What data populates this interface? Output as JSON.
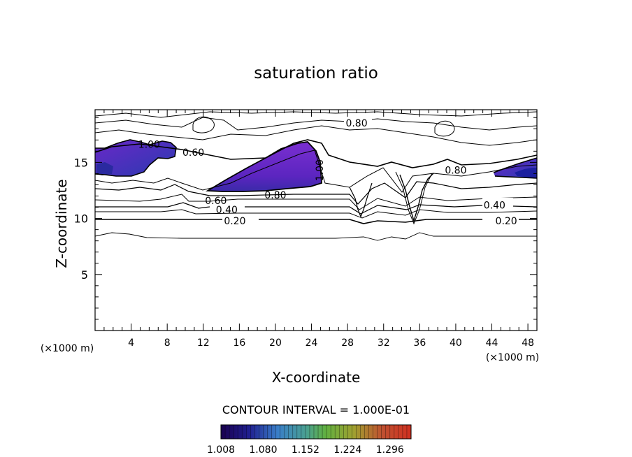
{
  "chart_data": {
    "type": "contour",
    "title": "saturation ratio",
    "xlabel": "X-coordinate",
    "ylabel": "Z-coordinate",
    "x_unit": "(×1000 m)",
    "y_unit": "(×1000 m)",
    "xlim": [
      0,
      49
    ],
    "ylim": [
      0,
      19.7
    ],
    "x_ticks": [
      "4",
      "8",
      "12",
      "16",
      "20",
      "24",
      "28",
      "32",
      "36",
      "40",
      "44",
      "48"
    ],
    "x_tick_values": [
      4,
      8,
      12,
      16,
      20,
      24,
      28,
      32,
      36,
      40,
      44,
      48
    ],
    "y_ticks": [
      "5",
      "10",
      "15"
    ],
    "y_tick_values": [
      5,
      10,
      15
    ],
    "contour_interval_text": "CONTOUR INTERVAL = 1.000E-01",
    "contour_labels": [
      {
        "text": "0.20",
        "x": 15.5,
        "z": 9.8
      },
      {
        "text": "0.20",
        "x": 45.6,
        "z": 9.8
      },
      {
        "text": "0.40",
        "x": 14.6,
        "z": 10.8
      },
      {
        "text": "0.40",
        "x": 44.3,
        "z": 11.2
      },
      {
        "text": "0.60",
        "x": 13.4,
        "z": 11.6
      },
      {
        "text": "0.80",
        "x": 20.0,
        "z": 12.1
      },
      {
        "text": "0.80",
        "x": 29.0,
        "z": 18.5
      },
      {
        "text": "0.60",
        "x": 10.9,
        "z": 15.9
      },
      {
        "text": "1.00",
        "x": 24.9,
        "z": 14.3
      },
      {
        "text": "0.80",
        "x": 40.0,
        "z": 14.3
      },
      {
        "text": "1.00",
        "x": 6.0,
        "z": 16.6
      }
    ],
    "colorbar": {
      "min": 1.008,
      "max": 1.332,
      "tick_labels": [
        "1.008",
        "1.080",
        "1.152",
        "1.224",
        "1.296"
      ],
      "tick_values": [
        1.008,
        1.08,
        1.152,
        1.224,
        1.296
      ]
    }
  }
}
